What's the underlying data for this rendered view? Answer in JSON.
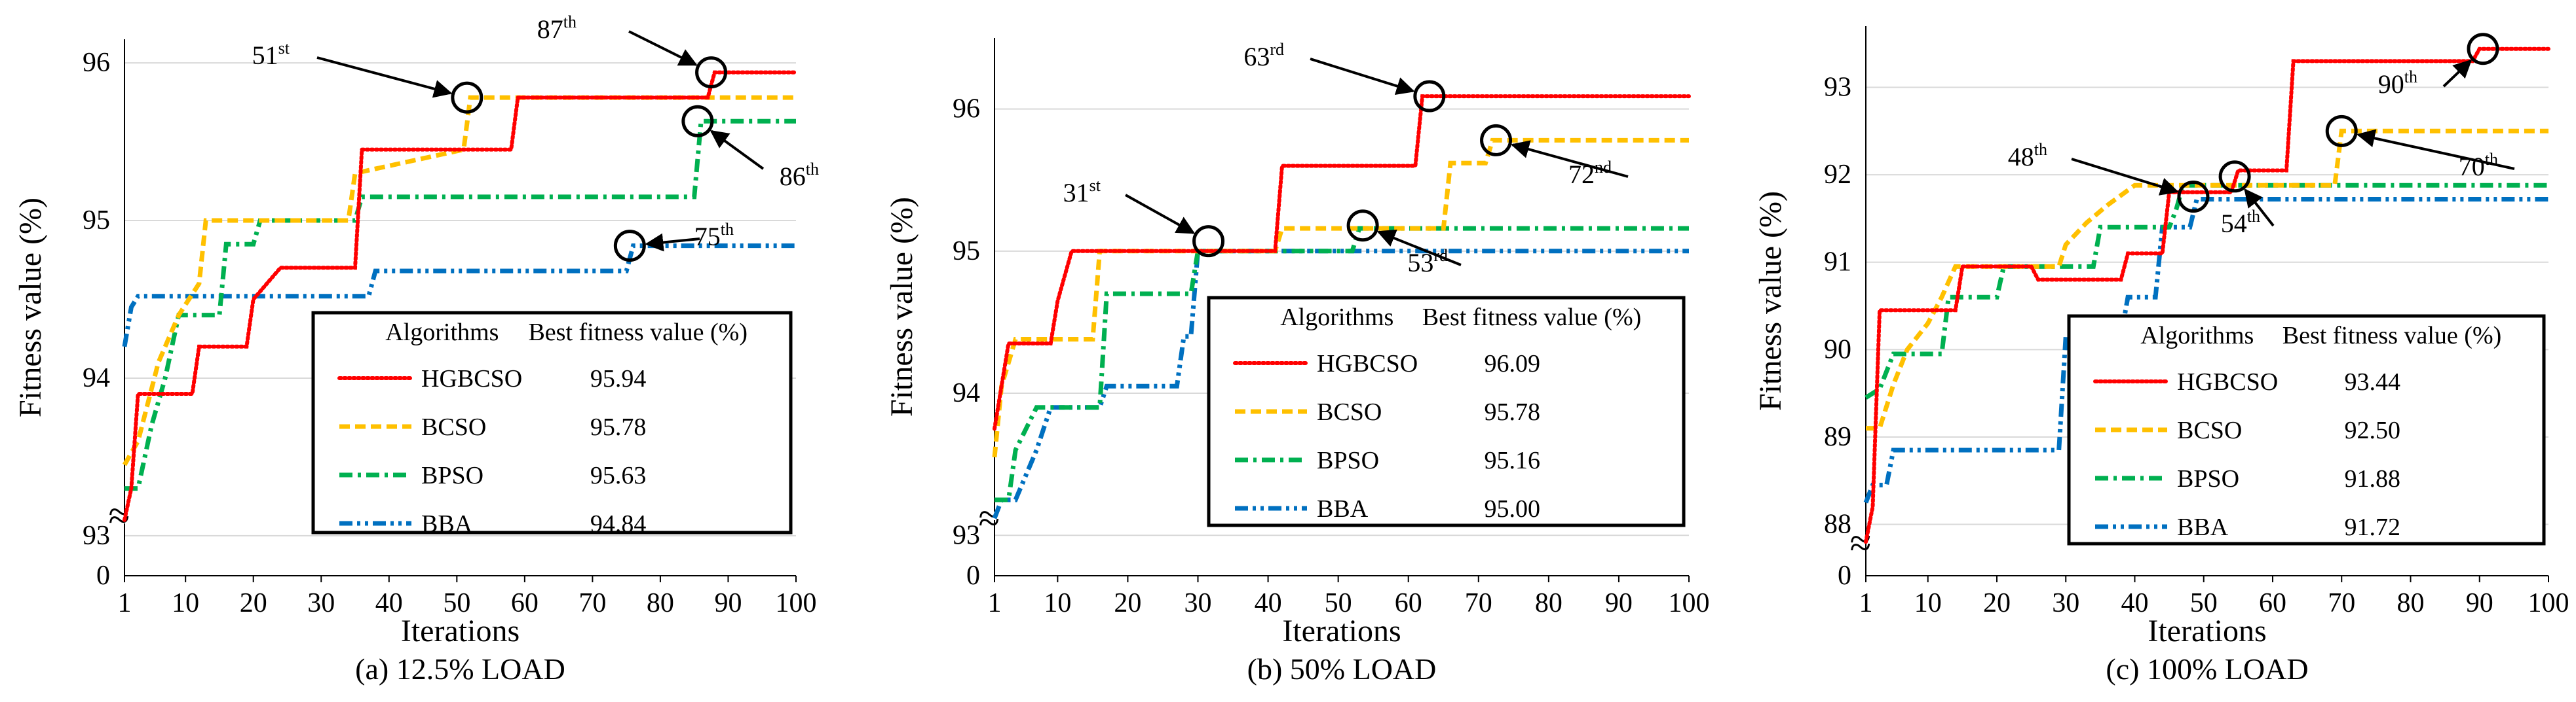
{
  "chart_data": [
    {
      "type": "line",
      "caption": "(a) 12.5% LOAD",
      "xlabel": "Iterations",
      "ylabel": "Fitness value (%)",
      "xlim": [
        1,
        100
      ],
      "xticks": [
        "1",
        "10",
        "20",
        "30",
        "40",
        "50",
        "60",
        "70",
        "80",
        "90",
        "100"
      ],
      "ylim": [
        92.85,
        96.15
      ],
      "yticks": [
        93,
        94,
        95,
        96
      ],
      "ytick_labels": [
        "93",
        "94",
        "95",
        "96"
      ],
      "zero_label": "0",
      "break_symbol": "≈",
      "legend_headers": [
        "Algorithms",
        "Best fitness value (%)"
      ],
      "series": [
        {
          "name": "HGBCSO",
          "best": "95.94",
          "color": "#ff0000",
          "style": "dotted",
          "points": [
            [
              1,
              93.1
            ],
            [
              2,
              93.3
            ],
            [
              3,
              93.9
            ],
            [
              11,
              93.9
            ],
            [
              12,
              94.2
            ],
            [
              19,
              94.2
            ],
            [
              20,
              94.5
            ],
            [
              24,
              94.7
            ],
            [
              35,
              94.7
            ],
            [
              36,
              95.45
            ],
            [
              58,
              95.45
            ],
            [
              59,
              95.78
            ],
            [
              87,
              95.78
            ],
            [
              88,
              95.94
            ],
            [
              100,
              95.94
            ]
          ]
        },
        {
          "name": "BCSO",
          "best": "95.78",
          "color": "#ffc000",
          "style": "dashed",
          "points": [
            [
              1,
              93.45
            ],
            [
              3,
              93.6
            ],
            [
              6,
              94.1
            ],
            [
              9,
              94.4
            ],
            [
              12,
              94.6
            ],
            [
              13,
              95.0
            ],
            [
              34,
              95.0
            ],
            [
              35,
              95.3
            ],
            [
              51,
              95.45
            ],
            [
              52,
              95.78
            ],
            [
              100,
              95.78
            ]
          ]
        },
        {
          "name": "BPSO",
          "best": "95.63",
          "color": "#00b050",
          "style": "dashdot",
          "points": [
            [
              1,
              93.3
            ],
            [
              3,
              93.3
            ],
            [
              5,
              93.7
            ],
            [
              7,
              94.0
            ],
            [
              9,
              94.4
            ],
            [
              15,
              94.4
            ],
            [
              16,
              94.85
            ],
            [
              20,
              94.85
            ],
            [
              21,
              95.0
            ],
            [
              35,
              95.0
            ],
            [
              36,
              95.15
            ],
            [
              85,
              95.15
            ],
            [
              86,
              95.63
            ],
            [
              100,
              95.63
            ]
          ]
        },
        {
          "name": "BBA",
          "best": "94.84",
          "color": "#0070c0",
          "style": "dashdotdot",
          "points": [
            [
              1,
              94.2
            ],
            [
              2,
              94.45
            ],
            [
              3,
              94.52
            ],
            [
              37,
              94.52
            ],
            [
              38,
              94.68
            ],
            [
              75,
              94.68
            ],
            [
              76,
              94.84
            ],
            [
              100,
              94.84
            ]
          ]
        }
      ],
      "markers": [
        {
          "x": 51.5,
          "y": 95.78,
          "label": "51",
          "sup": "st"
        },
        {
          "x": 87.5,
          "y": 95.94,
          "label": "87",
          "sup": "th"
        },
        {
          "x": 85.5,
          "y": 95.63,
          "label": "86",
          "sup": "th"
        },
        {
          "x": 75.5,
          "y": 94.84,
          "label": "75",
          "sup": "th"
        }
      ]
    },
    {
      "type": "line",
      "caption": "(b) 50% LOAD",
      "xlabel": "Iterations",
      "ylabel": "Fitness value (%)",
      "xlim": [
        1,
        100
      ],
      "xticks": [
        "1",
        "10",
        "20",
        "30",
        "40",
        "50",
        "60",
        "70",
        "80",
        "90",
        "100"
      ],
      "ylim": [
        92.9,
        96.5
      ],
      "yticks": [
        93,
        94,
        95,
        96
      ],
      "ytick_labels": [
        "93",
        "94",
        "95",
        "96"
      ],
      "zero_label": "0",
      "break_symbol": "≈",
      "legend_headers": [
        "Algorithms",
        "Best fitness value (%)"
      ],
      "series": [
        {
          "name": "HGBCSO",
          "best": "96.09",
          "color": "#ff0000",
          "style": "dotted",
          "points": [
            [
              1,
              93.75
            ],
            [
              2,
              94.05
            ],
            [
              3,
              94.35
            ],
            [
              9,
              94.35
            ],
            [
              10,
              94.65
            ],
            [
              12,
              95.0
            ],
            [
              41,
              95.0
            ],
            [
              42,
              95.6
            ],
            [
              61,
              95.6
            ],
            [
              62,
              96.09
            ],
            [
              100,
              96.09
            ]
          ]
        },
        {
          "name": "BCSO",
          "best": "95.78",
          "color": "#ffc000",
          "style": "dashed",
          "points": [
            [
              1,
              93.55
            ],
            [
              2,
              94.05
            ],
            [
              4,
              94.38
            ],
            [
              15,
              94.38
            ],
            [
              16,
              95.0
            ],
            [
              41,
              95.0
            ],
            [
              42,
              95.16
            ],
            [
              65,
              95.16
            ],
            [
              66,
              95.62
            ],
            [
              71,
              95.62
            ],
            [
              72,
              95.78
            ],
            [
              100,
              95.78
            ]
          ]
        },
        {
          "name": "BPSO",
          "best": "95.16",
          "color": "#00b050",
          "style": "dashdot",
          "points": [
            [
              1,
              93.25
            ],
            [
              3,
              93.25
            ],
            [
              4,
              93.6
            ],
            [
              7,
              93.9
            ],
            [
              16,
              93.9
            ],
            [
              17,
              94.7
            ],
            [
              29,
              94.7
            ],
            [
              30,
              95.0
            ],
            [
              52,
              95.0
            ],
            [
              53,
              95.16
            ],
            [
              100,
              95.16
            ]
          ]
        },
        {
          "name": "BBA",
          "best": "95.00",
          "color": "#0070c0",
          "style": "dashdotdot",
          "points": [
            [
              1,
              93.12
            ],
            [
              2,
              93.25
            ],
            [
              4,
              93.25
            ],
            [
              7,
              93.6
            ],
            [
              9,
              93.9
            ],
            [
              16,
              93.9
            ],
            [
              17,
              94.05
            ],
            [
              27,
              94.05
            ],
            [
              28,
              94.4
            ],
            [
              29,
              94.4
            ],
            [
              30,
              95.0
            ],
            [
              100,
              95.0
            ]
          ]
        }
      ],
      "markers": [
        {
          "x": 31.5,
          "y": 95.07,
          "label": "31",
          "sup": "st"
        },
        {
          "x": 63,
          "y": 96.09,
          "label": "63",
          "sup": "rd"
        },
        {
          "x": 72.5,
          "y": 95.78,
          "label": "72",
          "sup": "nd"
        },
        {
          "x": 53.5,
          "y": 95.18,
          "label": "53",
          "sup": "rd"
        }
      ]
    },
    {
      "type": "line",
      "caption": "(c) 100% LOAD",
      "xlabel": "Iterations",
      "ylabel": "Fitness value (%)",
      "xlim": [
        1,
        100
      ],
      "xticks": [
        "1",
        "10",
        "20",
        "30",
        "40",
        "50",
        "60",
        "70",
        "80",
        "90",
        "100"
      ],
      "ylim": [
        87.6,
        93.7
      ],
      "yticks": [
        88,
        89,
        90,
        91,
        92,
        93
      ],
      "ytick_labels": [
        "88",
        "89",
        "90",
        "91",
        "92",
        "93"
      ],
      "zero_label": "0",
      "break_symbol": "≈",
      "legend_headers": [
        "Algorithms",
        "Best fitness value (%)"
      ],
      "series": [
        {
          "name": "HGBCSO",
          "best": "93.44",
          "color": "#ff0000",
          "style": "dotted",
          "points": [
            [
              1,
              87.8
            ],
            [
              2,
              88.2
            ],
            [
              3,
              90.45
            ],
            [
              14,
              90.45
            ],
            [
              15,
              90.95
            ],
            [
              25,
              90.95
            ],
            [
              26,
              90.8
            ],
            [
              38,
              90.8
            ],
            [
              39,
              91.1
            ],
            [
              44,
              91.1
            ],
            [
              45,
              91.8
            ],
            [
              54,
              91.8
            ],
            [
              55,
              92.05
            ],
            [
              62,
              92.05
            ],
            [
              63,
              93.3
            ],
            [
              89,
              93.3
            ],
            [
              90,
              93.44
            ],
            [
              100,
              93.44
            ]
          ]
        },
        {
          "name": "BCSO",
          "best": "92.50",
          "color": "#ffc000",
          "style": "dashed",
          "points": [
            [
              1,
              89.1
            ],
            [
              3,
              89.1
            ],
            [
              5,
              89.6
            ],
            [
              7,
              90.0
            ],
            [
              10,
              90.3
            ],
            [
              12,
              90.6
            ],
            [
              14,
              90.95
            ],
            [
              29,
              90.95
            ],
            [
              30,
              91.2
            ],
            [
              33,
              91.45
            ],
            [
              36,
              91.65
            ],
            [
              40,
              91.88
            ],
            [
              69,
              91.88
            ],
            [
              70,
              92.5
            ],
            [
              100,
              92.5
            ]
          ]
        },
        {
          "name": "BPSO",
          "best": "91.88",
          "color": "#00b050",
          "style": "dashdot",
          "points": [
            [
              1,
              89.45
            ],
            [
              3,
              89.55
            ],
            [
              5,
              89.95
            ],
            [
              12,
              89.95
            ],
            [
              13,
              90.6
            ],
            [
              20,
              90.6
            ],
            [
              21,
              90.95
            ],
            [
              34,
              90.95
            ],
            [
              35,
              91.4
            ],
            [
              45,
              91.4
            ],
            [
              46,
              91.6
            ],
            [
              47,
              91.88
            ],
            [
              100,
              91.88
            ]
          ]
        },
        {
          "name": "BBA",
          "best": "91.72",
          "color": "#0070c0",
          "style": "dashdotdot",
          "points": [
            [
              1,
              88.25
            ],
            [
              2,
              88.45
            ],
            [
              4,
              88.45
            ],
            [
              5,
              88.85
            ],
            [
              29,
              88.85
            ],
            [
              30,
              90.15
            ],
            [
              38,
              90.15
            ],
            [
              39,
              90.6
            ],
            [
              43,
              90.6
            ],
            [
              44,
              91.4
            ],
            [
              48,
              91.4
            ],
            [
              49,
              91.72
            ],
            [
              100,
              91.72
            ]
          ]
        }
      ],
      "markers": [
        {
          "x": 48.5,
          "y": 91.75,
          "label": "48",
          "sup": "th"
        },
        {
          "x": 54.5,
          "y": 91.98,
          "label": "54",
          "sup": "th"
        },
        {
          "x": 70,
          "y": 92.5,
          "label": "70",
          "sup": "th"
        },
        {
          "x": 90.5,
          "y": 93.44,
          "label": "90",
          "sup": "th"
        }
      ]
    }
  ]
}
